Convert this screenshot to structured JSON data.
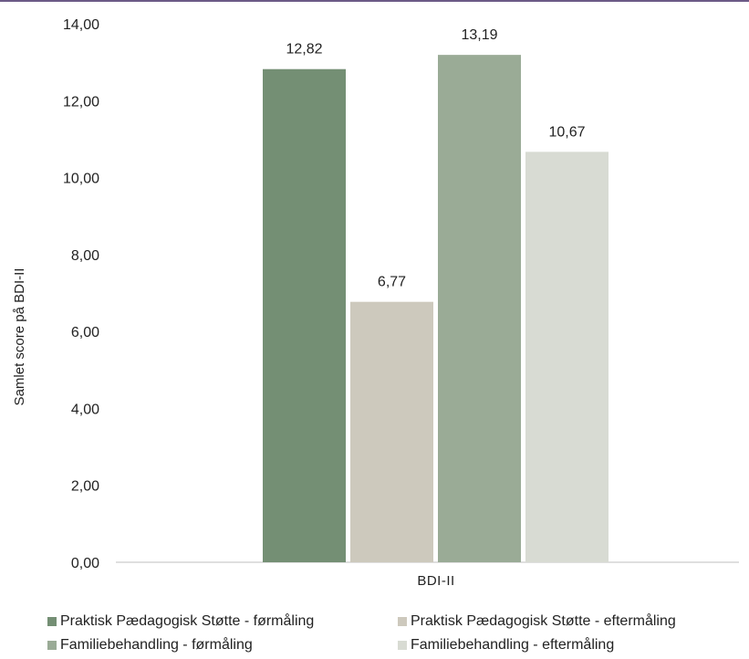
{
  "chart_data": {
    "type": "bar",
    "categories": [
      "BDI-II"
    ],
    "series": [
      {
        "name": "Praktisk Pædagogisk Støtte - førmåling",
        "values": [
          12.82
        ],
        "labels": [
          "12,82"
        ],
        "color": "#748f74"
      },
      {
        "name": "Praktisk Pædagogisk Støtte - eftermåling",
        "values": [
          6.77
        ],
        "labels": [
          "6,77"
        ],
        "color": "#cdc9bd"
      },
      {
        "name": "Familiebehandling - førmåling",
        "values": [
          13.19
        ],
        "labels": [
          "13,19"
        ],
        "color": "#9aab96"
      },
      {
        "name": "Familiebehandling - eftermåling",
        "values": [
          10.67
        ],
        "labels": [
          "10,67"
        ],
        "color": "#d8dbd3"
      }
    ],
    "ylabel": "Samlet score på BDI-II",
    "xlabel": "",
    "ylim": [
      0,
      14
    ],
    "yticks": [
      0,
      2,
      4,
      6,
      8,
      10,
      12,
      14
    ],
    "ytick_labels": [
      "0,00",
      "2,00",
      "4,00",
      "6,00",
      "8,00",
      "10,00",
      "12,00",
      "14,00"
    ],
    "grid": false,
    "legend": "bottom"
  }
}
